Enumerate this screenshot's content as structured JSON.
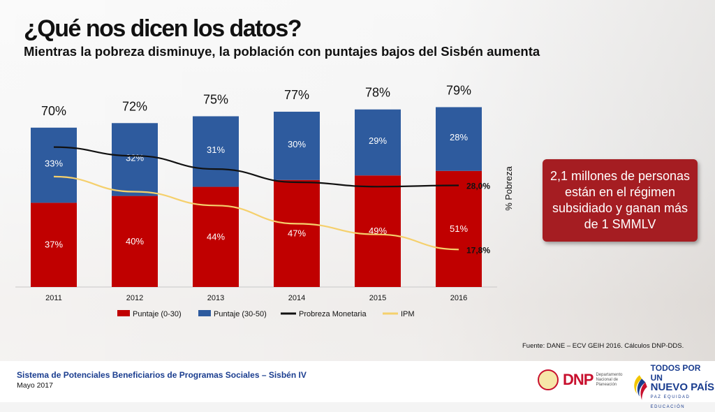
{
  "header": {
    "title": "¿Qué nos dicen los datos?",
    "subtitle": "Mientras la pobreza disminuye, la población con puntajes bajos del Sisbén aumenta"
  },
  "chart_data": {
    "type": "bar",
    "stacked": true,
    "categories": [
      "2011",
      "2012",
      "2013",
      "2014",
      "2015",
      "2016"
    ],
    "series": [
      {
        "name": "Puntaje (0-30)",
        "values": [
          37,
          40,
          44,
          47,
          49,
          51
        ],
        "labels": [
          "37%",
          "40%",
          "44%",
          "47%",
          "49%",
          "51%"
        ],
        "color": "#c00000"
      },
      {
        "name": "Puntaje (30-50)",
        "values": [
          33,
          32,
          31,
          30,
          29,
          28
        ],
        "labels": [
          "33%",
          "32%",
          "31%",
          "30%",
          "29%",
          "28%"
        ],
        "color": "#2e5b9e"
      }
    ],
    "totals": [
      "70%",
      "72%",
      "75%",
      "77%",
      "78%",
      "79%"
    ],
    "line_series": [
      {
        "name": "Probreza Monetaria",
        "values": [
          34.1,
          32.7,
          30.6,
          28.5,
          27.8,
          28.0
        ],
        "end_label": "28,0%",
        "color": "#111111"
      },
      {
        "name": "IPM",
        "values": [
          29.4,
          27.0,
          24.8,
          21.9,
          20.2,
          17.8
        ],
        "end_label": "17,8%",
        "color": "#f5d06c"
      }
    ],
    "secondary_ylabel": "% Pobreza",
    "legend_position": "bottom",
    "ylim": [
      0,
      100
    ]
  },
  "callout": {
    "text": "2,1 millones de personas están en el régimen subsidiado y ganan más de 1 SMMLV"
  },
  "source": "Fuente: DANE – ECV GEIH 2016. Cálculos DNP-DDS.",
  "footer": {
    "title": "Sistema de Potenciales Beneficiarios de Programas Sociales – Sisbén IV",
    "date": "Mayo 2017",
    "dnp_name": "DNP",
    "dnp_sub": "Departamento Nacional de Planeación",
    "slogan_line1": "TODOS POR UN",
    "slogan_line2": "NUEVO PAÍS",
    "slogan_line3": "PAZ EQUIDAD EDUCACIÓN"
  },
  "colors": {
    "accent_red": "#a51d22",
    "footer_blue": "#1a3d8f"
  }
}
